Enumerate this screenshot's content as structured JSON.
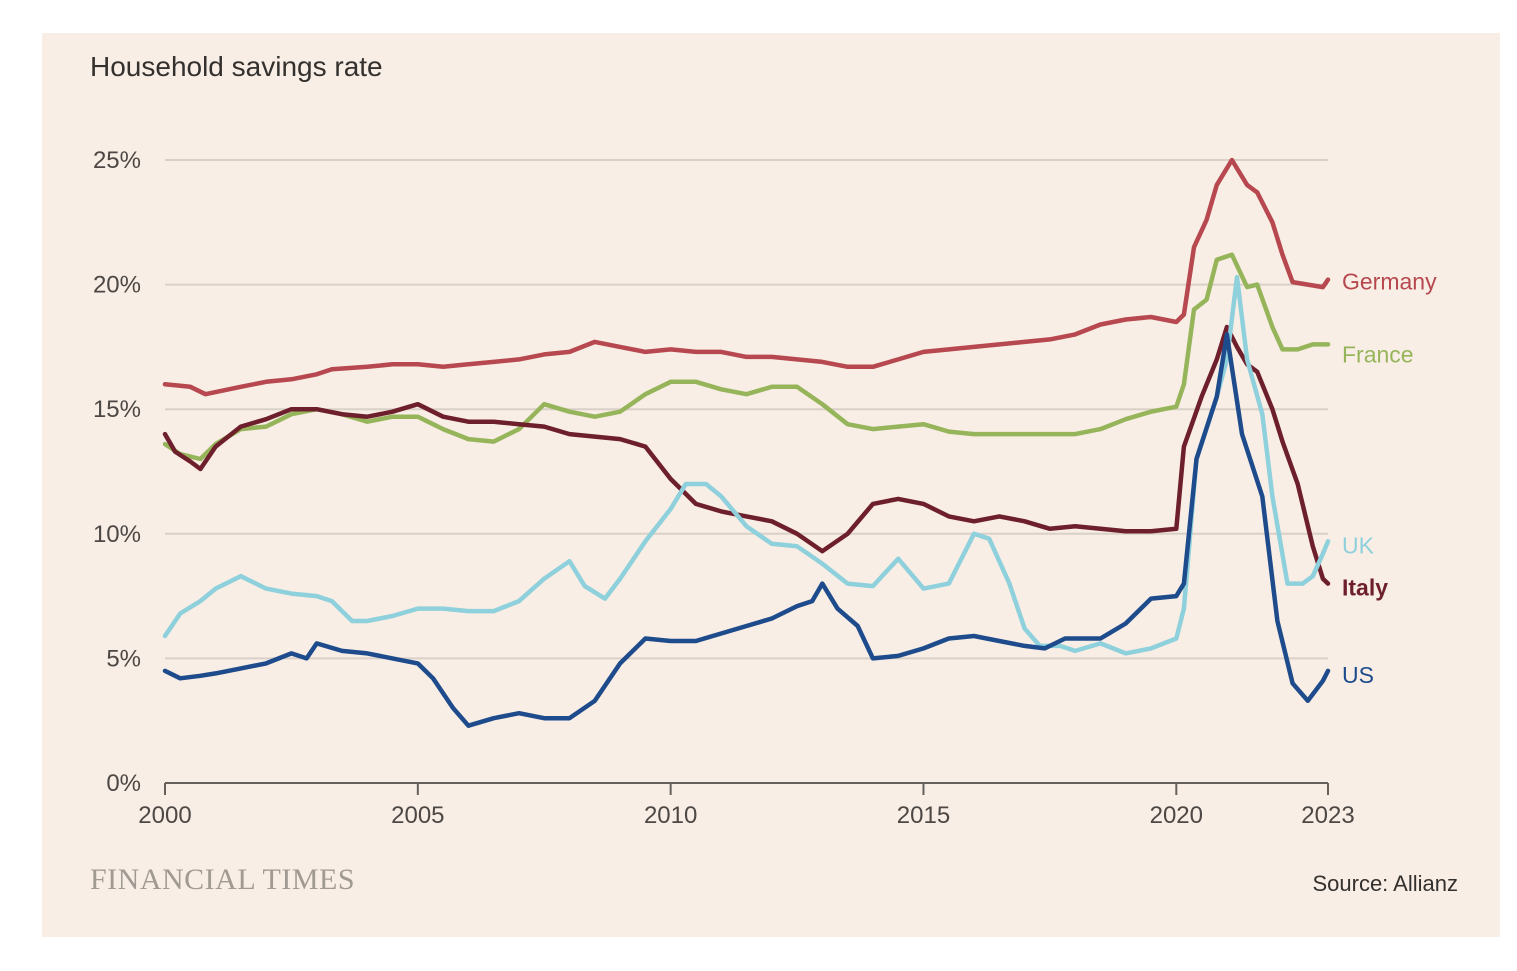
{
  "header": {
    "title": "Household savings rate"
  },
  "footer": {
    "brand": "FINANCIAL TIMES",
    "source": "Source: Allianz"
  },
  "chart_data": {
    "type": "line",
    "title": "Household savings rate",
    "xlim": [
      2000,
      2023
    ],
    "ylim": [
      0,
      25
    ],
    "grid": true,
    "legend": "inline labels at right end of lines",
    "x_ticks": [
      {
        "value": 2000,
        "label": "2000"
      },
      {
        "value": 2005,
        "label": "2005"
      },
      {
        "value": 2010,
        "label": "2010"
      },
      {
        "value": 2015,
        "label": "2015"
      },
      {
        "value": 2020,
        "label": "2020"
      },
      {
        "value": 2023,
        "label": "2023"
      }
    ],
    "y_ticks": [
      {
        "value": 0,
        "label": "0%"
      },
      {
        "value": 5,
        "label": "5%"
      },
      {
        "value": 10,
        "label": "10%"
      },
      {
        "value": 15,
        "label": "15%"
      },
      {
        "value": 20,
        "label": "20%"
      },
      {
        "value": 25,
        "label": "25%"
      }
    ],
    "series": [
      {
        "name": "Germany",
        "color": "#b7484f",
        "points": [
          [
            2000,
            16.0
          ],
          [
            2000.5,
            15.9
          ],
          [
            2000.8,
            15.6
          ],
          [
            2001.5,
            15.9
          ],
          [
            2002,
            16.1
          ],
          [
            2002.5,
            16.2
          ],
          [
            2003,
            16.4
          ],
          [
            2003.3,
            16.6
          ],
          [
            2004,
            16.7
          ],
          [
            2004.5,
            16.8
          ],
          [
            2005,
            16.8
          ],
          [
            2005.5,
            16.7
          ],
          [
            2006,
            16.8
          ],
          [
            2006.5,
            16.9
          ],
          [
            2007,
            17.0
          ],
          [
            2007.5,
            17.2
          ],
          [
            2008,
            17.3
          ],
          [
            2008.5,
            17.7
          ],
          [
            2009,
            17.5
          ],
          [
            2009.5,
            17.3
          ],
          [
            2010,
            17.4
          ],
          [
            2010.5,
            17.3
          ],
          [
            2011,
            17.3
          ],
          [
            2011.5,
            17.1
          ],
          [
            2012,
            17.1
          ],
          [
            2012.5,
            17.0
          ],
          [
            2013,
            16.9
          ],
          [
            2013.5,
            16.7
          ],
          [
            2014,
            16.7
          ],
          [
            2014.5,
            17.0
          ],
          [
            2015,
            17.3
          ],
          [
            2015.5,
            17.4
          ],
          [
            2016,
            17.5
          ],
          [
            2016.5,
            17.6
          ],
          [
            2017,
            17.7
          ],
          [
            2017.5,
            17.8
          ],
          [
            2018,
            18.0
          ],
          [
            2018.5,
            18.4
          ],
          [
            2019,
            18.6
          ],
          [
            2019.5,
            18.7
          ],
          [
            2020,
            18.5
          ],
          [
            2020.15,
            18.8
          ],
          [
            2020.35,
            21.5
          ],
          [
            2020.6,
            22.6
          ],
          [
            2020.8,
            24.0
          ],
          [
            2021.1,
            25.0
          ],
          [
            2021.4,
            24.0
          ],
          [
            2021.6,
            23.7
          ],
          [
            2021.9,
            22.5
          ],
          [
            2022.1,
            21.2
          ],
          [
            2022.3,
            20.1
          ],
          [
            2022.6,
            20.0
          ],
          [
            2022.9,
            19.9
          ],
          [
            2023,
            20.2
          ]
        ]
      },
      {
        "name": "France",
        "color": "#96b55b",
        "points": [
          [
            2000,
            13.6
          ],
          [
            2000.3,
            13.2
          ],
          [
            2000.7,
            13.0
          ],
          [
            2001,
            13.6
          ],
          [
            2001.5,
            14.2
          ],
          [
            2002,
            14.3
          ],
          [
            2002.5,
            14.8
          ],
          [
            2003,
            15.0
          ],
          [
            2003.5,
            14.8
          ],
          [
            2004,
            14.5
          ],
          [
            2004.5,
            14.7
          ],
          [
            2005,
            14.7
          ],
          [
            2005.5,
            14.2
          ],
          [
            2006,
            13.8
          ],
          [
            2006.5,
            13.7
          ],
          [
            2007,
            14.2
          ],
          [
            2007.5,
            15.2
          ],
          [
            2008,
            14.9
          ],
          [
            2008.5,
            14.7
          ],
          [
            2009,
            14.9
          ],
          [
            2009.5,
            15.6
          ],
          [
            2010,
            16.1
          ],
          [
            2010.5,
            16.1
          ],
          [
            2011,
            15.8
          ],
          [
            2011.5,
            15.6
          ],
          [
            2012,
            15.9
          ],
          [
            2012.5,
            15.9
          ],
          [
            2013,
            15.2
          ],
          [
            2013.5,
            14.4
          ],
          [
            2014,
            14.2
          ],
          [
            2014.5,
            14.3
          ],
          [
            2015,
            14.4
          ],
          [
            2015.5,
            14.1
          ],
          [
            2016,
            14.0
          ],
          [
            2016.5,
            14.0
          ],
          [
            2017,
            14.0
          ],
          [
            2017.5,
            14.0
          ],
          [
            2018,
            14.0
          ],
          [
            2018.5,
            14.2
          ],
          [
            2019,
            14.6
          ],
          [
            2019.5,
            14.9
          ],
          [
            2020,
            15.1
          ],
          [
            2020.15,
            16.0
          ],
          [
            2020.35,
            19.0
          ],
          [
            2020.6,
            19.4
          ],
          [
            2020.8,
            21.0
          ],
          [
            2021.1,
            21.2
          ],
          [
            2021.4,
            19.9
          ],
          [
            2021.6,
            20.0
          ],
          [
            2021.9,
            18.3
          ],
          [
            2022.1,
            17.4
          ],
          [
            2022.4,
            17.4
          ],
          [
            2022.7,
            17.6
          ],
          [
            2023,
            17.6
          ]
        ]
      },
      {
        "name": "Italy",
        "color": "#6e1f2c",
        "points": [
          [
            2000,
            14.0
          ],
          [
            2000.2,
            13.3
          ],
          [
            2000.5,
            12.9
          ],
          [
            2000.7,
            12.6
          ],
          [
            2001,
            13.5
          ],
          [
            2001.5,
            14.3
          ],
          [
            2002,
            14.6
          ],
          [
            2002.5,
            15.0
          ],
          [
            2003,
            15.0
          ],
          [
            2003.5,
            14.8
          ],
          [
            2004,
            14.7
          ],
          [
            2004.5,
            14.9
          ],
          [
            2005,
            15.2
          ],
          [
            2005.5,
            14.7
          ],
          [
            2006,
            14.5
          ],
          [
            2006.5,
            14.5
          ],
          [
            2007,
            14.4
          ],
          [
            2007.5,
            14.3
          ],
          [
            2008,
            14.0
          ],
          [
            2008.5,
            13.9
          ],
          [
            2009,
            13.8
          ],
          [
            2009.5,
            13.5
          ],
          [
            2010,
            12.2
          ],
          [
            2010.5,
            11.2
          ],
          [
            2011,
            10.9
          ],
          [
            2011.5,
            10.7
          ],
          [
            2012,
            10.5
          ],
          [
            2012.5,
            10.0
          ],
          [
            2013,
            9.3
          ],
          [
            2013.5,
            10.0
          ],
          [
            2014,
            11.2
          ],
          [
            2014.5,
            11.4
          ],
          [
            2015,
            11.2
          ],
          [
            2015.5,
            10.7
          ],
          [
            2016,
            10.5
          ],
          [
            2016.5,
            10.7
          ],
          [
            2017,
            10.5
          ],
          [
            2017.5,
            10.2
          ],
          [
            2018,
            10.3
          ],
          [
            2018.5,
            10.2
          ],
          [
            2019,
            10.1
          ],
          [
            2019.5,
            10.1
          ],
          [
            2020,
            10.2
          ],
          [
            2020.15,
            13.5
          ],
          [
            2020.5,
            15.5
          ],
          [
            2020.8,
            17.0
          ],
          [
            2021.0,
            18.3
          ],
          [
            2021.2,
            17.5
          ],
          [
            2021.4,
            16.8
          ],
          [
            2021.6,
            16.5
          ],
          [
            2021.9,
            15.0
          ],
          [
            2022.1,
            13.7
          ],
          [
            2022.4,
            12.0
          ],
          [
            2022.7,
            9.5
          ],
          [
            2022.9,
            8.2
          ],
          [
            2023,
            8.0
          ]
        ]
      },
      {
        "name": "UK",
        "color": "#8ed0dc",
        "points": [
          [
            2000,
            5.9
          ],
          [
            2000.3,
            6.8
          ],
          [
            2000.7,
            7.3
          ],
          [
            2001,
            7.8
          ],
          [
            2001.5,
            8.3
          ],
          [
            2002,
            7.8
          ],
          [
            2002.5,
            7.6
          ],
          [
            2003,
            7.5
          ],
          [
            2003.3,
            7.3
          ],
          [
            2003.7,
            6.5
          ],
          [
            2004,
            6.5
          ],
          [
            2004.5,
            6.7
          ],
          [
            2005,
            7.0
          ],
          [
            2005.5,
            7.0
          ],
          [
            2006,
            6.9
          ],
          [
            2006.5,
            6.9
          ],
          [
            2007,
            7.3
          ],
          [
            2007.5,
            8.2
          ],
          [
            2008,
            8.9
          ],
          [
            2008.3,
            7.9
          ],
          [
            2008.7,
            7.4
          ],
          [
            2009,
            8.2
          ],
          [
            2009.5,
            9.7
          ],
          [
            2010,
            11.0
          ],
          [
            2010.3,
            12.0
          ],
          [
            2010.7,
            12.0
          ],
          [
            2011,
            11.5
          ],
          [
            2011.5,
            10.3
          ],
          [
            2012,
            9.6
          ],
          [
            2012.5,
            9.5
          ],
          [
            2013,
            8.8
          ],
          [
            2013.5,
            8.0
          ],
          [
            2014,
            7.9
          ],
          [
            2014.5,
            9.0
          ],
          [
            2015,
            7.8
          ],
          [
            2015.5,
            8.0
          ],
          [
            2016,
            10.0
          ],
          [
            2016.3,
            9.8
          ],
          [
            2016.7,
            8.0
          ],
          [
            2017,
            6.2
          ],
          [
            2017.3,
            5.5
          ],
          [
            2017.7,
            5.5
          ],
          [
            2018,
            5.3
          ],
          [
            2018.5,
            5.6
          ],
          [
            2019,
            5.2
          ],
          [
            2019.5,
            5.4
          ],
          [
            2020,
            5.8
          ],
          [
            2020.15,
            7.0
          ],
          [
            2020.4,
            13.0
          ],
          [
            2020.8,
            15.5
          ],
          [
            2021.0,
            17.0
          ],
          [
            2021.2,
            20.3
          ],
          [
            2021.4,
            17.0
          ],
          [
            2021.7,
            14.8
          ],
          [
            2021.9,
            11.5
          ],
          [
            2022.2,
            8.0
          ],
          [
            2022.5,
            8.0
          ],
          [
            2022.7,
            8.3
          ],
          [
            2022.9,
            9.2
          ],
          [
            2023,
            9.7
          ]
        ]
      },
      {
        "name": "US",
        "color": "#1e4b8c",
        "points": [
          [
            2000,
            4.5
          ],
          [
            2000.3,
            4.2
          ],
          [
            2000.7,
            4.3
          ],
          [
            2001,
            4.4
          ],
          [
            2001.5,
            4.6
          ],
          [
            2002,
            4.8
          ],
          [
            2002.5,
            5.2
          ],
          [
            2002.8,
            5.0
          ],
          [
            2003,
            5.6
          ],
          [
            2003.5,
            5.3
          ],
          [
            2004,
            5.2
          ],
          [
            2004.5,
            5.0
          ],
          [
            2005,
            4.8
          ],
          [
            2005.3,
            4.2
          ],
          [
            2005.7,
            3.0
          ],
          [
            2006,
            2.3
          ],
          [
            2006.5,
            2.6
          ],
          [
            2007,
            2.8
          ],
          [
            2007.5,
            2.6
          ],
          [
            2008,
            2.6
          ],
          [
            2008.5,
            3.3
          ],
          [
            2009,
            4.8
          ],
          [
            2009.5,
            5.8
          ],
          [
            2010,
            5.7
          ],
          [
            2010.5,
            5.7
          ],
          [
            2011,
            6.0
          ],
          [
            2011.5,
            6.3
          ],
          [
            2012,
            6.6
          ],
          [
            2012.5,
            7.1
          ],
          [
            2012.8,
            7.3
          ],
          [
            2013,
            8.0
          ],
          [
            2013.3,
            7.0
          ],
          [
            2013.7,
            6.3
          ],
          [
            2014,
            5.0
          ],
          [
            2014.5,
            5.1
          ],
          [
            2015,
            5.4
          ],
          [
            2015.5,
            5.8
          ],
          [
            2016,
            5.9
          ],
          [
            2016.5,
            5.7
          ],
          [
            2017,
            5.5
          ],
          [
            2017.4,
            5.4
          ],
          [
            2017.8,
            5.8
          ],
          [
            2018.5,
            5.8
          ],
          [
            2019,
            6.4
          ],
          [
            2019.5,
            7.4
          ],
          [
            2020,
            7.5
          ],
          [
            2020.15,
            8.0
          ],
          [
            2020.4,
            13.0
          ],
          [
            2020.8,
            15.5
          ],
          [
            2021.0,
            18.0
          ],
          [
            2021.3,
            14.0
          ],
          [
            2021.7,
            11.5
          ],
          [
            2022.0,
            6.5
          ],
          [
            2022.3,
            4.0
          ],
          [
            2022.6,
            3.3
          ],
          [
            2022.9,
            4.1
          ],
          [
            2023,
            4.5
          ]
        ]
      }
    ]
  }
}
